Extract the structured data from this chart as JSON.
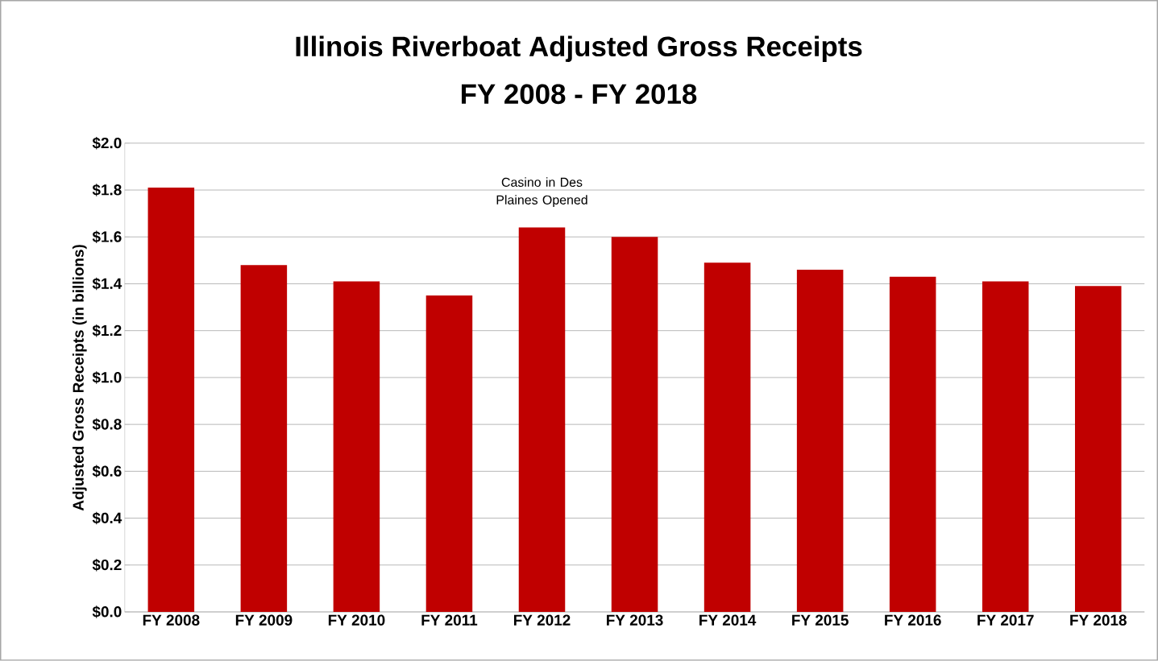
{
  "chart_data": {
    "type": "bar",
    "title": "Illinois Riverboat Adjusted Gross Receipts",
    "subtitle": "FY 2008 - FY 2018",
    "ylabel": "Adjusted Gross Receipts (in billions)",
    "categories": [
      "FY 2008",
      "FY 2009",
      "FY 2010",
      "FY 2011",
      "FY 2012",
      "FY 2013",
      "FY 2014",
      "FY 2015",
      "FY 2016",
      "FY 2017",
      "FY 2018"
    ],
    "values": [
      1.81,
      1.48,
      1.41,
      1.35,
      1.64,
      1.6,
      1.49,
      1.46,
      1.43,
      1.41,
      1.39
    ],
    "color": "#c00000",
    "ylim": [
      0,
      2.0
    ],
    "yticks": [
      {
        "value": 0,
        "label": "$0.0"
      },
      {
        "value": 0.2,
        "label": "$0.2"
      },
      {
        "value": 0.4,
        "label": "$0.4"
      },
      {
        "value": 0.6,
        "label": "$0.6"
      },
      {
        "value": 0.8,
        "label": "$0.8"
      },
      {
        "value": 1.0,
        "label": "$1.0"
      },
      {
        "value": 1.2,
        "label": "$1.2"
      },
      {
        "value": 1.4,
        "label": "$1.4"
      },
      {
        "value": 1.6,
        "label": "$1.6"
      },
      {
        "value": 1.8,
        "label": "$1.8"
      },
      {
        "value": 2.0,
        "label": "$2.0"
      }
    ],
    "grid": "y",
    "annotations": [
      {
        "text": "Casino in Des Plaines Opened",
        "x": "FY 2012",
        "y": 1.64
      }
    ]
  }
}
